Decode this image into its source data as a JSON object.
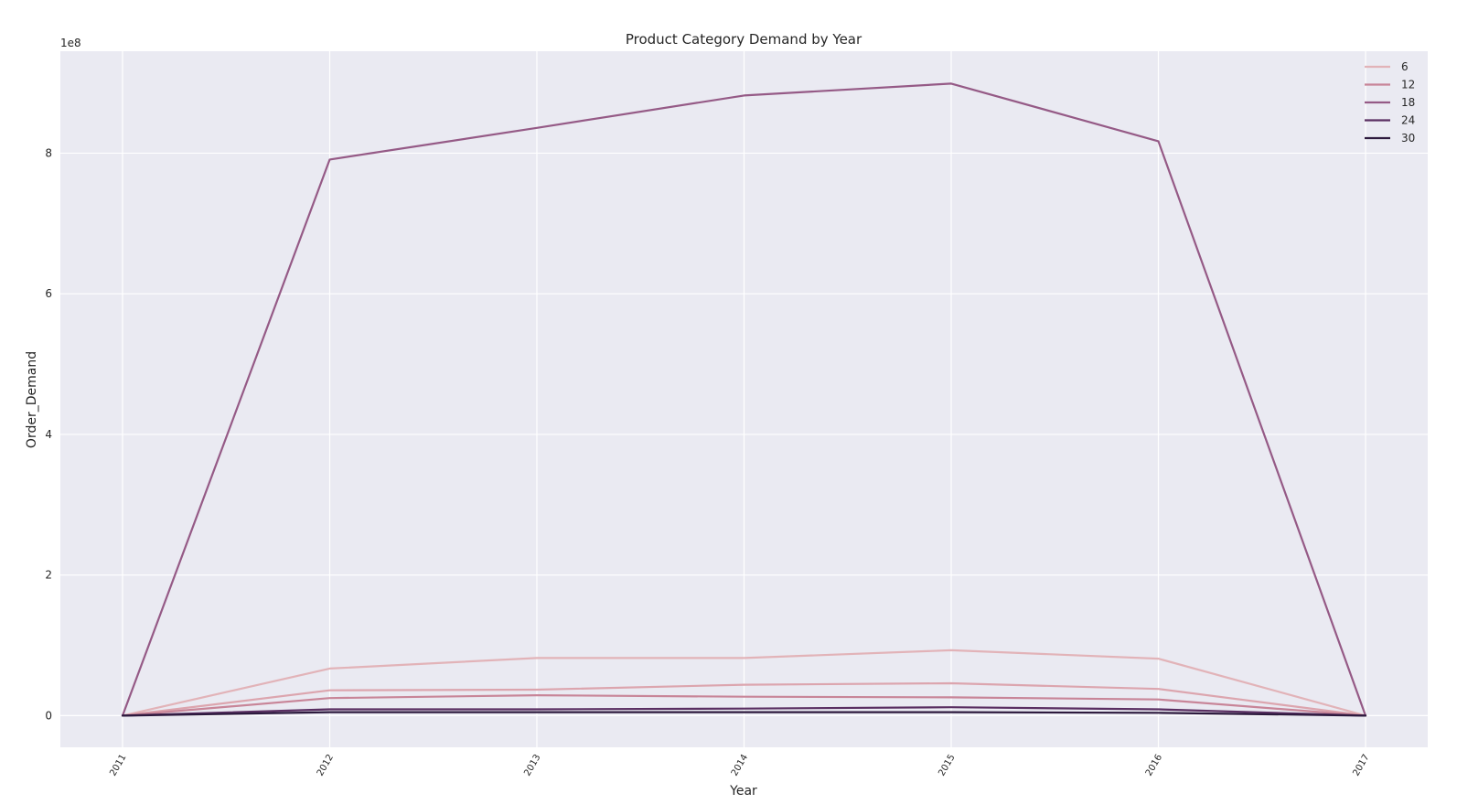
{
  "chart_data": {
    "type": "line",
    "title": "Product Category Demand by Year",
    "xlabel": "Year",
    "ylabel": "Order_Demand",
    "y_offset_label": "1e8",
    "x": [
      2011,
      2012,
      2013,
      2014,
      2015,
      2016,
      2017
    ],
    "x_tick_labels": [
      "2011",
      "2012",
      "2013",
      "2014",
      "2015",
      "2016",
      "2017"
    ],
    "y_ticks": [
      0,
      2,
      4,
      6,
      8
    ],
    "y_unit_scale": 100000000,
    "ylim": [
      -0.45,
      9.45
    ],
    "xlim": [
      2010.7,
      2017.3
    ],
    "grid": true,
    "legend_position": "top-right",
    "legend": [
      "6",
      "12",
      "18",
      "24",
      "30"
    ],
    "lines": [
      {
        "color": "#e2b3b8",
        "values": [
          0.0,
          0.67,
          0.82,
          0.82,
          0.93,
          0.81,
          0.0
        ]
      },
      {
        "color": "#dca5ae",
        "values": [
          0.0,
          0.36,
          0.37,
          0.44,
          0.46,
          0.38,
          0.0
        ]
      },
      {
        "color": "#c88598",
        "values": [
          0.0,
          0.25,
          0.29,
          0.27,
          0.26,
          0.23,
          0.0
        ]
      },
      {
        "color": "#955a86",
        "values": [
          0.0,
          7.91,
          8.36,
          8.82,
          8.99,
          8.17,
          0.0
        ]
      },
      {
        "color": "#5a2f62",
        "values": [
          0.0,
          0.09,
          0.09,
          0.1,
          0.12,
          0.09,
          0.0
        ]
      },
      {
        "color": "#2d1a3e",
        "values": [
          0.0,
          0.05,
          0.05,
          0.05,
          0.05,
          0.04,
          0.0
        ]
      }
    ],
    "legend_colors": [
      "#e2b3b8",
      "#c88598",
      "#955a86",
      "#5a2f62",
      "#2d1a3e"
    ]
  }
}
